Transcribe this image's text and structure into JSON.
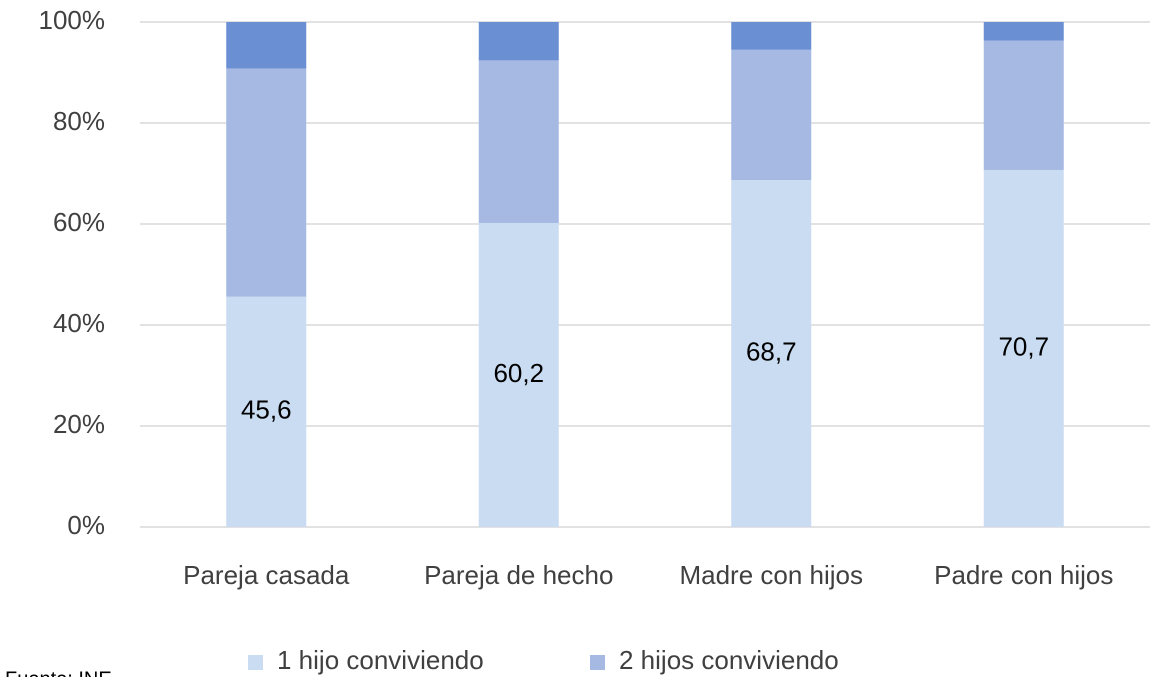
{
  "chart_data": {
    "type": "stacked_bar",
    "categories": [
      "Pareja casada",
      "Pareja de hecho",
      "Madre con hijos",
      "Padre con hijos"
    ],
    "series": [
      {
        "name": "1 hijo conviviendo",
        "color": "#c9dcf2",
        "values": [
          45.6,
          60.2,
          68.7,
          70.7
        ],
        "value_labels": [
          "45,6",
          "60,2",
          "68,7",
          "70,7"
        ]
      },
      {
        "name": "2 hijos conviviendo",
        "color": "#a6b9e3",
        "values": [
          45.2,
          32.2,
          25.8,
          25.6
        ]
      },
      {
        "color": "#6a8fd3",
        "values": [
          9.2,
          7.6,
          5.5,
          3.7
        ]
      }
    ],
    "ylim": [
      0,
      100
    ],
    "yticks": [
      {
        "value": 0,
        "label": "0%"
      },
      {
        "value": 20,
        "label": "20%"
      },
      {
        "value": 40,
        "label": "40%"
      },
      {
        "value": 60,
        "label": "60%"
      },
      {
        "value": 80,
        "label": "80%"
      },
      {
        "value": 100,
        "label": "100%"
      }
    ],
    "grid": true,
    "legend": "bottom",
    "source": "Fuente: INE"
  }
}
